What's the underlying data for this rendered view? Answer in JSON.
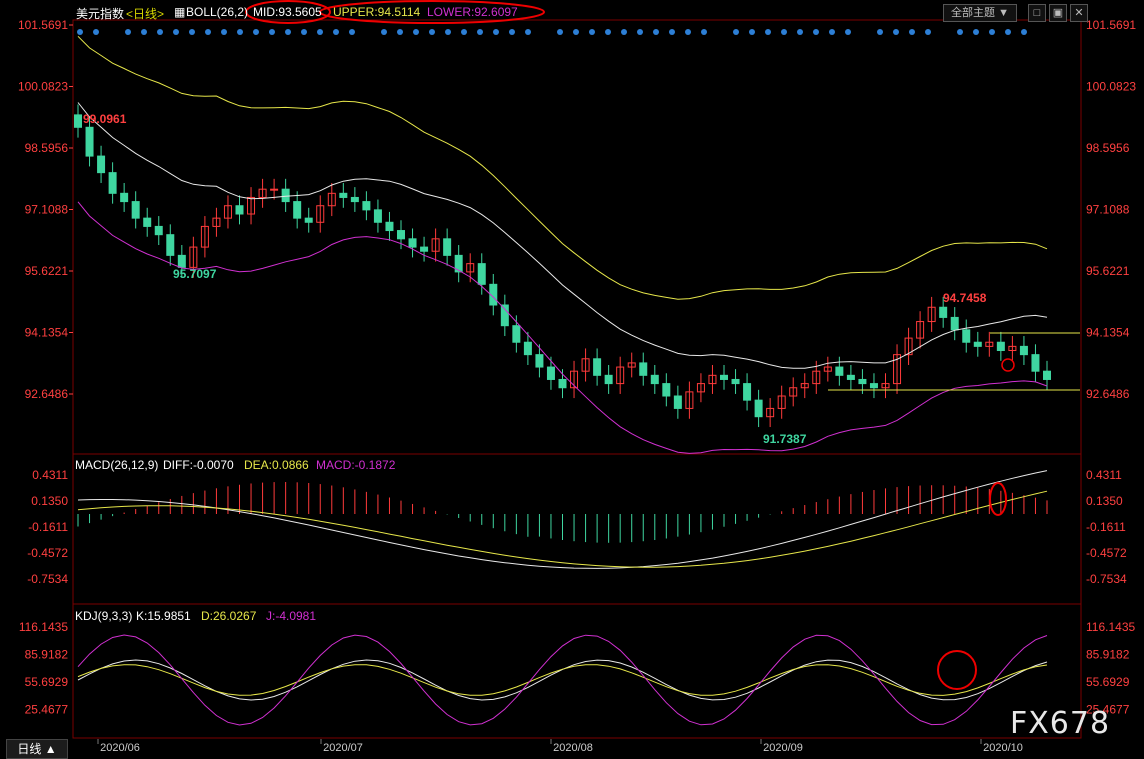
{
  "header": {
    "title": "美元指数",
    "period": "<日线>",
    "indicator": "BOLL(26,2)",
    "mid": "MID:93.5605",
    "upper": "UPPER:94.5114",
    "lower": "LOWER:92.6097"
  },
  "toolbar": {
    "theme_label": "全部主题",
    "icons": [
      "square-icon",
      "maximize-icon",
      "close-icon"
    ]
  },
  "price_axis": [
    "101.5691",
    "100.0823",
    "98.5956",
    "97.1088",
    "95.6221",
    "94.1354",
    "92.6486"
  ],
  "price_annotations": {
    "high1": "99.0961",
    "low1": "95.7097",
    "low2": "91.7387",
    "high2": "94.7458"
  },
  "macd": {
    "title": "MACD(26,12,9)",
    "diff": "DIFF:-0.0070",
    "dea": "DEA:0.0866",
    "macd": "MACD:-0.1872",
    "axis": [
      "0.4311",
      "0.1350",
      "-0.1611",
      "-0.4572",
      "-0.7534"
    ]
  },
  "kdj": {
    "title": "KDJ(9,3,3)",
    "k": "K:15.9851",
    "d": "D:26.0267",
    "j": "J:-4.0981",
    "axis": [
      "116.1435",
      "85.9182",
      "55.6929",
      "25.4677"
    ]
  },
  "xaxis": [
    "2020/06",
    "2020/07",
    "2020/08",
    "2020/09",
    "2020/10"
  ],
  "bottom_tab": "日线 ▲",
  "watermark": "FX678",
  "colors": {
    "up": "#ff3b3b",
    "down": "#3fd6a0",
    "mid": "#e8e8e8",
    "upper": "#e6e64a",
    "lower": "#d030d0",
    "axis": "#ff4040"
  },
  "chart_data": {
    "type": "candlestick",
    "period": "daily",
    "closes": [
      99.0961,
      98.4,
      98.0,
      97.5,
      97.3,
      96.9,
      96.7,
      96.5,
      96.0,
      95.7097,
      96.2,
      96.7,
      96.9,
      97.2,
      97.0,
      97.4,
      97.6,
      97.6,
      97.3,
      96.9,
      96.8,
      97.2,
      97.5,
      97.4,
      97.3,
      97.1,
      96.8,
      96.6,
      96.4,
      96.2,
      96.1,
      96.4,
      96.0,
      95.6,
      95.8,
      95.3,
      94.8,
      94.3,
      93.9,
      93.6,
      93.3,
      93.0,
      92.8,
      93.2,
      93.5,
      93.1,
      92.9,
      93.3,
      93.4,
      93.1,
      92.9,
      92.6,
      92.3,
      92.7,
      92.9,
      93.1,
      93.0,
      92.9,
      92.5,
      92.1,
      92.3,
      92.6,
      92.8,
      92.9,
      93.2,
      93.3,
      93.1,
      93.0,
      92.9,
      92.8,
      92.9,
      93.6,
      94.0,
      94.4,
      94.7458,
      94.5,
      94.2,
      93.9,
      93.8,
      93.9,
      93.7,
      93.8,
      93.6,
      93.2,
      93.0
    ]
  }
}
